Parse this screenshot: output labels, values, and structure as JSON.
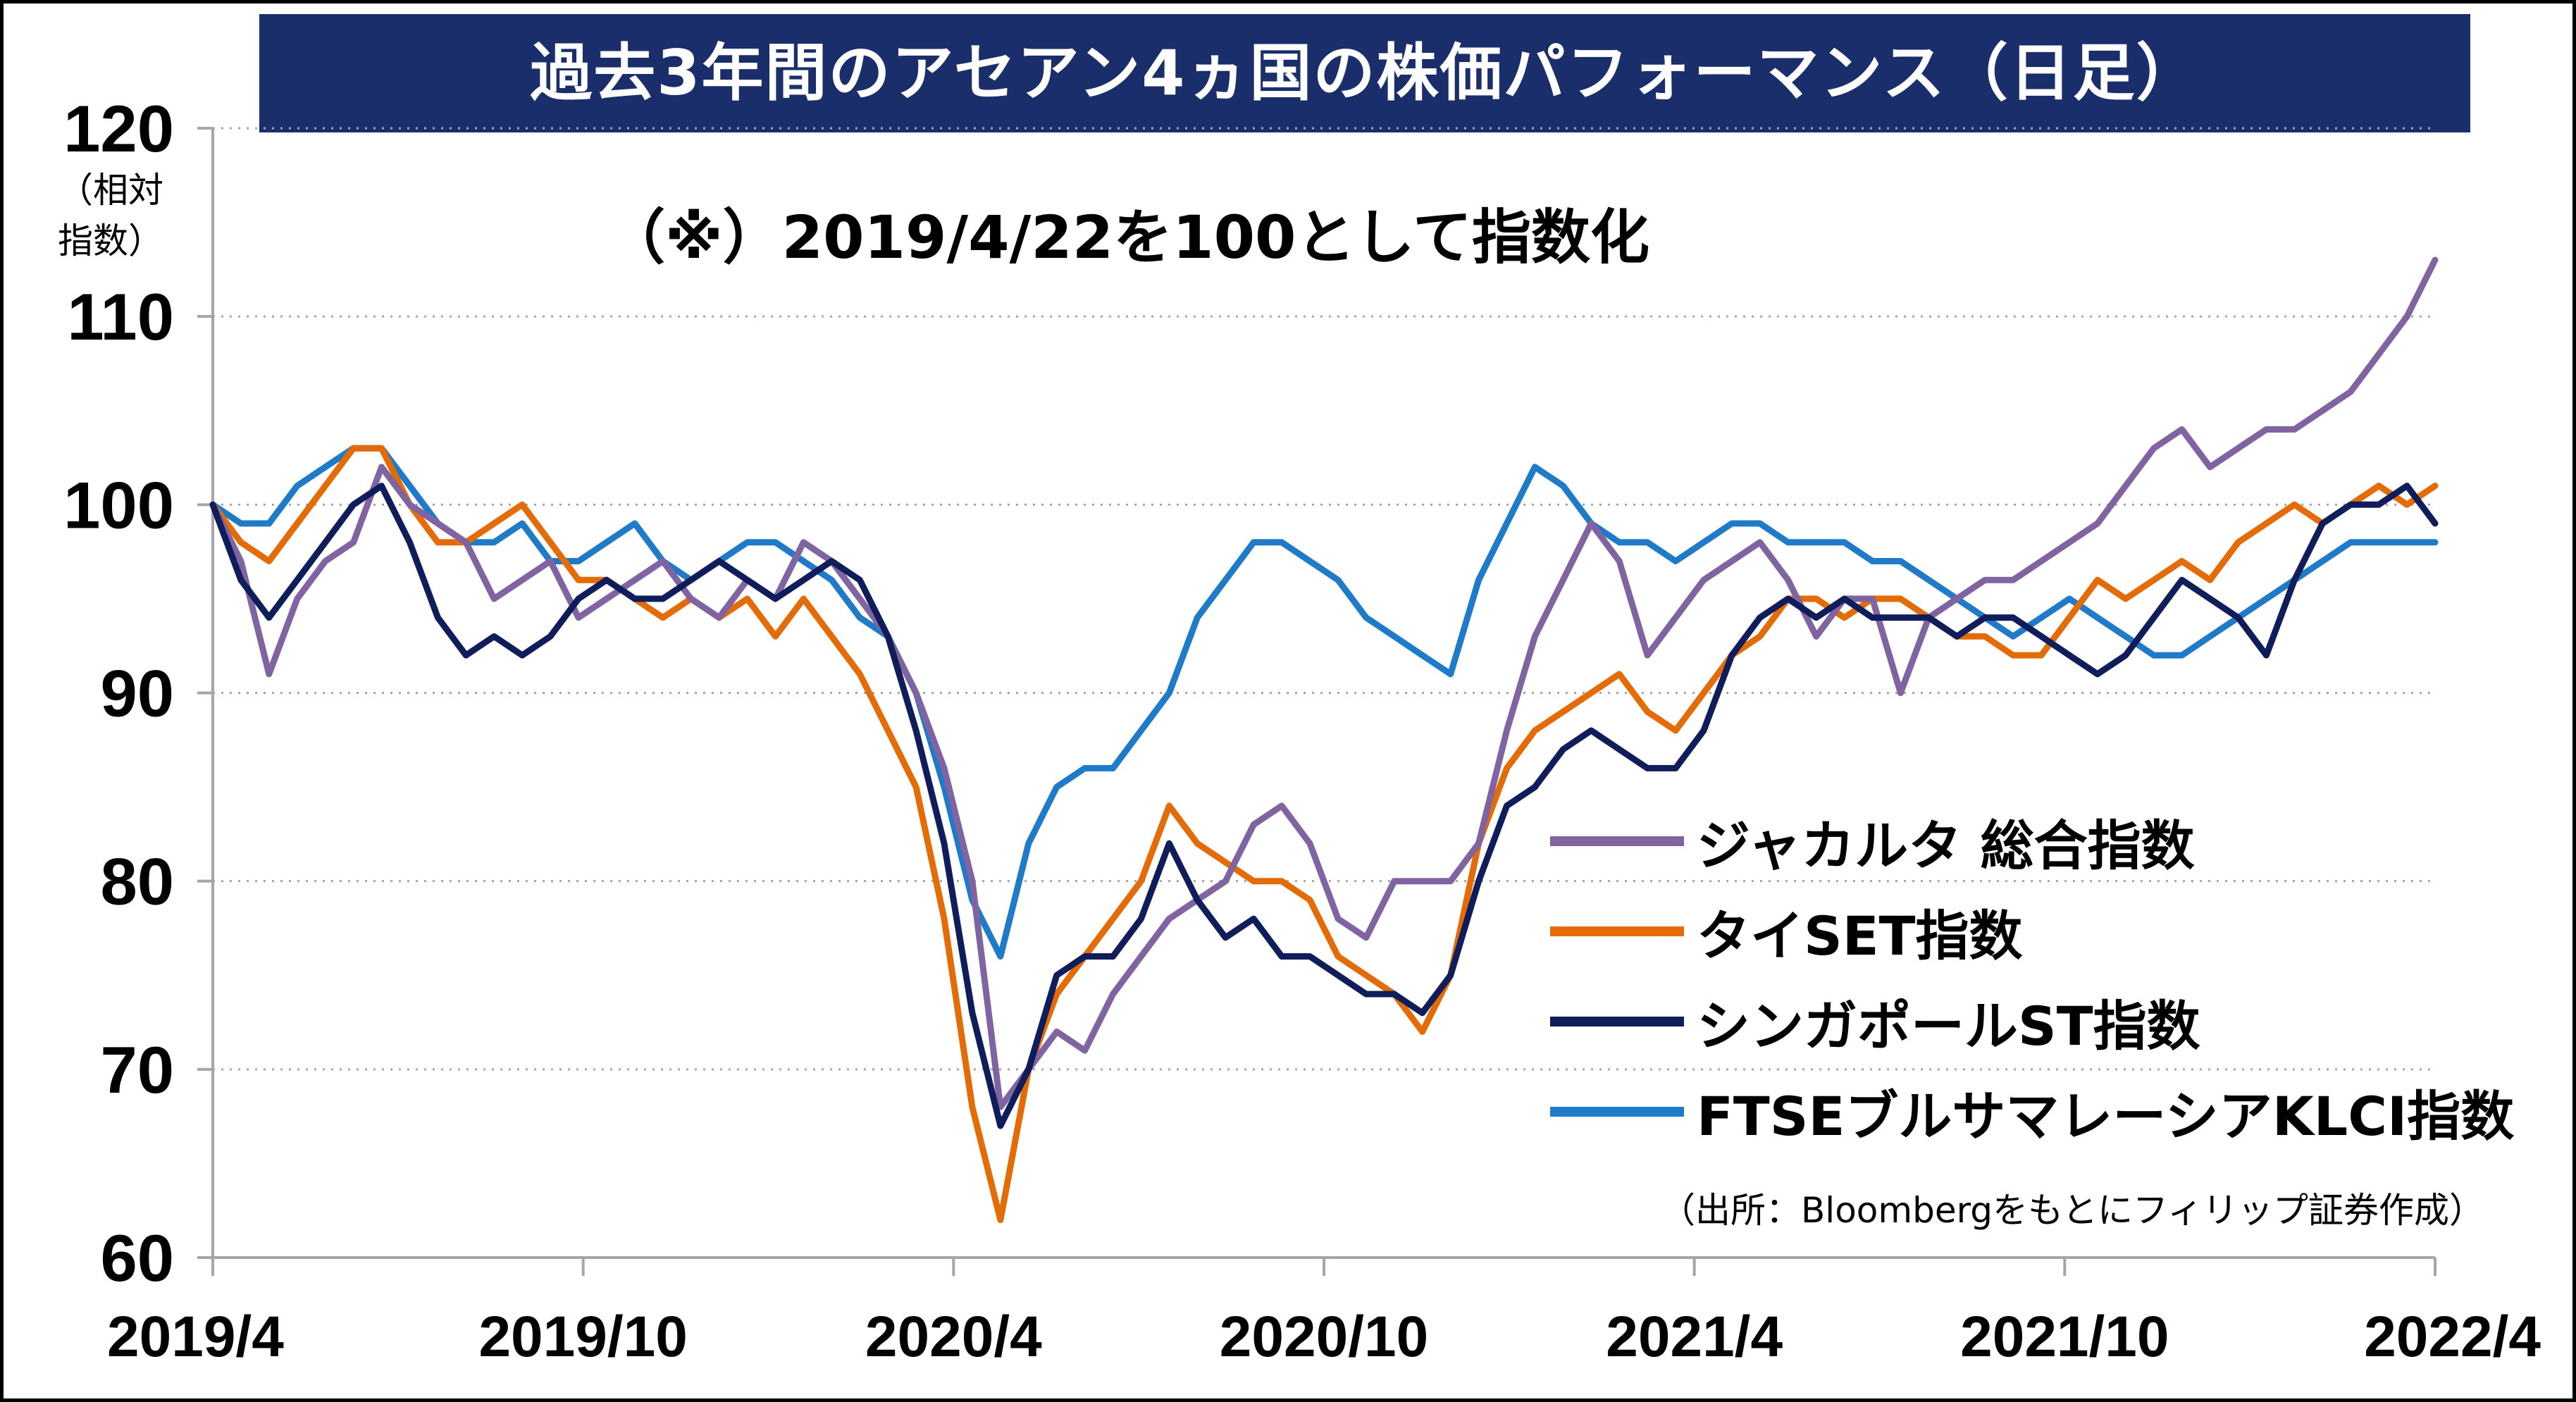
{
  "title": "過去3年間のアセアン4ヵ国の株価パフォーマンス（日足）",
  "note": "（※）2019/4/22を100として指数化",
  "source": "（出所：Bloombergをもとにフィリップ証券作成）",
  "chart_data": {
    "type": "line",
    "ylabel": "（相対指数）",
    "ylim": [
      60,
      120
    ],
    "yticks": [
      60,
      70,
      80,
      90,
      100,
      110,
      120
    ],
    "xticks": [
      "2019/4",
      "2019/10",
      "2020/4",
      "2020/10",
      "2021/4",
      "2021/10",
      "2022/4"
    ],
    "grid": "horizontal dotted",
    "legend_position": "bottom-right",
    "series": [
      {
        "name": "ジャカルタ 総合指数",
        "color": "#8064a2",
        "values": [
          100,
          97,
          91,
          95,
          97,
          98,
          102,
          100,
          99,
          98,
          95,
          96,
          97,
          94,
          95,
          96,
          97,
          95,
          94,
          96,
          95,
          98,
          97,
          95,
          93,
          90,
          86,
          80,
          68,
          70,
          72,
          71,
          74,
          76,
          78,
          79,
          80,
          83,
          84,
          82,
          78,
          77,
          80,
          80,
          80,
          82,
          88,
          93,
          96,
          99,
          97,
          92,
          94,
          96,
          97,
          98,
          96,
          93,
          95,
          95,
          90,
          94,
          95,
          96,
          96,
          97,
          98,
          99,
          101,
          103,
          104,
          102,
          103,
          104,
          104,
          105,
          106,
          108,
          110,
          113
        ]
      },
      {
        "name": "タイSET指数",
        "color": "#e36c09",
        "values": [
          100,
          98,
          97,
          99,
          101,
          103,
          103,
          100,
          98,
          98,
          99,
          100,
          98,
          96,
          96,
          95,
          94,
          95,
          94,
          95,
          93,
          95,
          93,
          91,
          88,
          85,
          78,
          68,
          62,
          70,
          74,
          76,
          78,
          80,
          84,
          82,
          81,
          80,
          80,
          79,
          76,
          75,
          74,
          72,
          75,
          82,
          86,
          88,
          89,
          90,
          91,
          89,
          88,
          90,
          92,
          93,
          95,
          95,
          94,
          95,
          95,
          94,
          93,
          93,
          92,
          92,
          94,
          96,
          95,
          96,
          97,
          96,
          98,
          99,
          100,
          99,
          100,
          101,
          100,
          101
        ]
      },
      {
        "name": "シンガポールST指数",
        "color": "#0f1d5a",
        "values": [
          100,
          96,
          94,
          96,
          98,
          100,
          101,
          98,
          94,
          92,
          93,
          92,
          93,
          95,
          96,
          95,
          95,
          96,
          97,
          96,
          95,
          96,
          97,
          96,
          93,
          88,
          82,
          73,
          67,
          70,
          75,
          76,
          76,
          78,
          82,
          79,
          77,
          78,
          76,
          76,
          75,
          74,
          74,
          73,
          75,
          80,
          84,
          85,
          87,
          88,
          87,
          86,
          86,
          88,
          92,
          94,
          95,
          94,
          95,
          94,
          94,
          94,
          93,
          94,
          94,
          93,
          92,
          91,
          92,
          94,
          96,
          95,
          94,
          92,
          96,
          99,
          100,
          100,
          101,
          99
        ]
      },
      {
        "name": "FTSEブルサマレーシアKLCI指数",
        "color": "#1f7bc8",
        "values": [
          100,
          99,
          99,
          101,
          102,
          103,
          103,
          101,
          99,
          98,
          98,
          99,
          97,
          97,
          98,
          99,
          97,
          96,
          97,
          98,
          98,
          97,
          96,
          94,
          93,
          90,
          85,
          79,
          76,
          82,
          85,
          86,
          86,
          88,
          90,
          94,
          96,
          98,
          98,
          97,
          96,
          94,
          93,
          92,
          91,
          96,
          99,
          102,
          101,
          99,
          98,
          98,
          97,
          98,
          99,
          99,
          98,
          98,
          98,
          97,
          97,
          96,
          95,
          94,
          93,
          94,
          95,
          94,
          93,
          92,
          92,
          93,
          94,
          95,
          96,
          97,
          98,
          98,
          98,
          98
        ]
      }
    ]
  }
}
